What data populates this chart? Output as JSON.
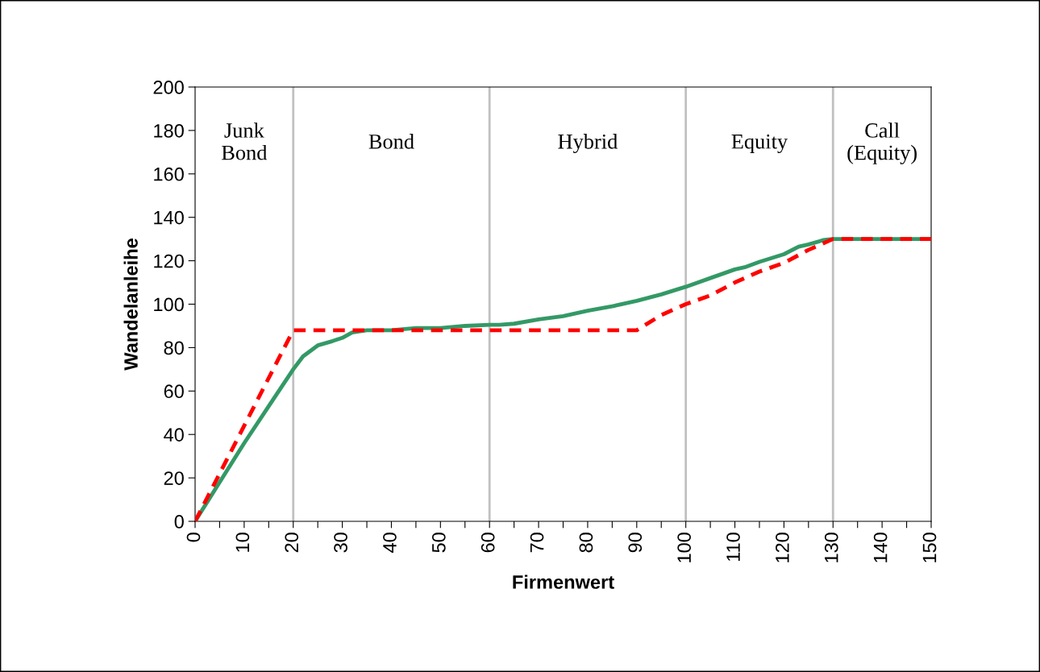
{
  "chart_data": {
    "type": "line",
    "xlabel": "Firmenwert",
    "ylabel": "Wandelanleihe",
    "series": [
      {
        "color": "#339966",
        "line_style": "solid",
        "x": [
          0,
          5,
          10,
          15,
          20,
          22,
          25,
          28,
          30,
          32,
          35,
          40,
          45,
          50,
          55,
          60,
          62,
          65,
          70,
          75,
          80,
          85,
          90,
          95,
          100,
          105,
          110,
          112,
          115,
          120,
          123,
          125,
          128,
          130,
          150
        ],
        "values": [
          0,
          18,
          36,
          53,
          70,
          76,
          81,
          83,
          84.5,
          87,
          88,
          88,
          89,
          89,
          90,
          90.5,
          90.5,
          91,
          93,
          94.5,
          97,
          99,
          101.5,
          104.5,
          108,
          112,
          116,
          117,
          119.5,
          123,
          126.5,
          127.5,
          129.5,
          130,
          130
        ]
      },
      {
        "color": "#ff0000",
        "line_style": "dashed",
        "x": [
          0,
          20,
          90,
          95,
          100,
          105,
          110,
          115,
          120,
          125,
          130,
          150
        ],
        "values": [
          0,
          88,
          88,
          95,
          100,
          104,
          110,
          115,
          119,
          125,
          130,
          130
        ]
      }
    ],
    "xlim": [
      0,
      150
    ],
    "ylim": [
      0,
      200
    ],
    "xticks": [
      0,
      {
        "value": 5,
        "label": null
      },
      10,
      {
        "value": 15,
        "label": null
      },
      20,
      {
        "value": 25,
        "label": null
      },
      30,
      {
        "value": 35,
        "label": null
      },
      40,
      {
        "value": 45,
        "label": null
      },
      50,
      {
        "value": 55,
        "label": null
      },
      60,
      {
        "value": 65,
        "label": null
      },
      70,
      {
        "value": 75,
        "label": null
      },
      80,
      {
        "value": 85,
        "label": null
      },
      90,
      {
        "value": 95,
        "label": null
      },
      100,
      {
        "value": 105,
        "label": null
      },
      110,
      {
        "value": 115,
        "label": null
      },
      120,
      {
        "value": 125,
        "label": null
      },
      130,
      {
        "value": 135,
        "label": null
      },
      140,
      {
        "value": 145,
        "label": null
      },
      150
    ],
    "yticks": [
      0,
      20,
      40,
      60,
      80,
      100,
      120,
      140,
      160,
      180,
      200
    ],
    "ref_lines": [
      {
        "axis": "x",
        "value": 20,
        "color": "#c0c0c0"
      },
      {
        "axis": "x",
        "value": 60,
        "color": "#c0c0c0"
      },
      {
        "axis": "x",
        "value": 100,
        "color": "#c0c0c0"
      },
      {
        "axis": "x",
        "value": 130,
        "color": "#c0c0c0"
      }
    ],
    "annotations": [
      "Junk\nBond",
      "Bond",
      "Hybrid",
      "Equity",
      "Call\n(Equity)"
    ],
    "grid": false,
    "legend": false
  }
}
